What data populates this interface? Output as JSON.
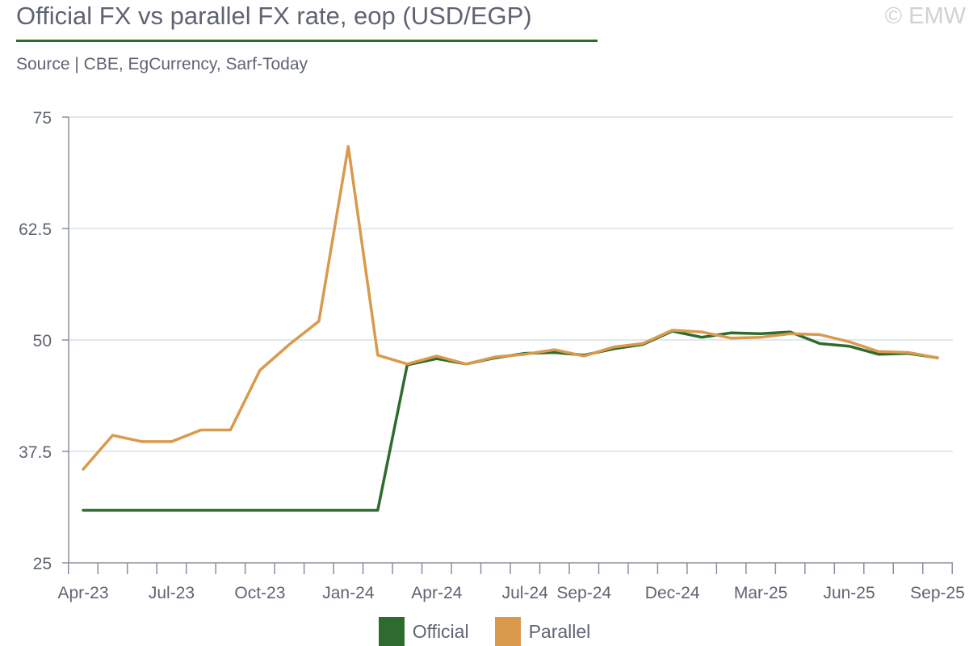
{
  "header": {
    "title": "Official FX vs parallel FX rate, eop (USD/EGP)",
    "source": "Source | CBE, EgCurrency, Sarf-Today",
    "copyright": "© EMW"
  },
  "chart_data": {
    "type": "line",
    "xlabel": "",
    "ylabel": "",
    "ylim": [
      25,
      75
    ],
    "yticks": [
      25,
      37.5,
      50,
      62.5,
      75
    ],
    "ytick_labels": [
      "25",
      "37.5",
      "50",
      "62.5",
      "75"
    ],
    "grid": true,
    "legend_position": "bottom",
    "x": [
      "Apr-23",
      "May-23",
      "Jun-23",
      "Jul-23",
      "Aug-23",
      "Sep-23",
      "Oct-23",
      "Nov-23",
      "Dec-23",
      "Jan-24",
      "Feb-24",
      "Mar-24",
      "Apr-24",
      "May-24",
      "Jun-24",
      "Jul-24",
      "Aug-24",
      "Sep-24",
      "Oct-24",
      "Nov-24",
      "Dec-24",
      "Jan-25",
      "Feb-25",
      "Mar-25",
      "Apr-25",
      "May-25",
      "Jun-25",
      "Jul-25",
      "Aug-25",
      "Sep-25"
    ],
    "xtick_labels": [
      {
        "index": 0,
        "label": "Apr-23"
      },
      {
        "index": 3,
        "label": "Jul-23"
      },
      {
        "index": 6,
        "label": "Oct-23"
      },
      {
        "index": 9,
        "label": "Jan-24"
      },
      {
        "index": 12,
        "label": "Apr-24"
      },
      {
        "index": 15,
        "label": "Jul-24"
      },
      {
        "index": 17,
        "label": "Sep-24"
      },
      {
        "index": 20,
        "label": "Dec-24"
      },
      {
        "index": 23,
        "label": "Mar-25"
      },
      {
        "index": 26,
        "label": "Jun-25"
      },
      {
        "index": 29,
        "label": "Sep-25"
      }
    ],
    "series": [
      {
        "name": "Official",
        "color": "#2e6b2e",
        "values": [
          30.9,
          30.9,
          30.9,
          30.9,
          30.9,
          30.9,
          30.9,
          30.9,
          30.9,
          30.9,
          30.9,
          47.2,
          47.9,
          47.3,
          48.0,
          48.5,
          48.6,
          48.3,
          49.0,
          49.5,
          51.0,
          50.3,
          50.8,
          50.7,
          50.9,
          49.6,
          49.3,
          48.4,
          48.5,
          48.0
        ]
      },
      {
        "name": "Parallel",
        "color": "#d99a4e",
        "values": [
          35.5,
          39.3,
          38.6,
          38.6,
          39.9,
          39.9,
          46.6,
          49.5,
          52.1,
          71.7,
          48.3,
          47.3,
          48.2,
          47.3,
          48.1,
          48.4,
          48.9,
          48.2,
          49.2,
          49.6,
          51.1,
          50.9,
          50.2,
          50.3,
          50.7,
          50.6,
          49.8,
          48.7,
          48.6,
          48.0
        ]
      }
    ]
  }
}
